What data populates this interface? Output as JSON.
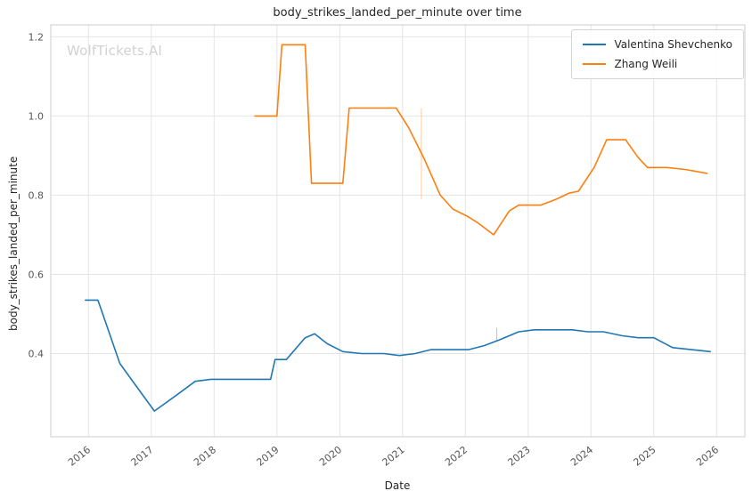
{
  "watermark": "WolfTickets.AI",
  "chart_data": {
    "type": "line",
    "title": "body_strikes_landed_per_minute over time",
    "xlabel": "Date",
    "ylabel": "body_strikes_landed_per_minute",
    "xlim": [
      2015.4,
      2026.45
    ],
    "ylim": [
      0.19,
      1.23
    ],
    "xticks": [
      2016,
      2017,
      2018,
      2019,
      2020,
      2021,
      2022,
      2023,
      2024,
      2025,
      2026
    ],
    "yticks": [
      0.4,
      0.6,
      0.8,
      1.0,
      1.2
    ],
    "grid": true,
    "legend_position": "upper right",
    "series": [
      {
        "name": "Valentina Shevchenko",
        "color": "#1f77b4",
        "x": [
          2015.95,
          2016.15,
          2016.5,
          2016.75,
          2017.05,
          2017.4,
          2017.7,
          2017.95,
          2018.3,
          2018.6,
          2018.9,
          2018.97,
          2019.15,
          2019.45,
          2019.6,
          2019.8,
          2020.05,
          2020.35,
          2020.7,
          2020.95,
          2021.2,
          2021.45,
          2021.75,
          2022.05,
          2022.3,
          2022.55,
          2022.85,
          2023.1,
          2023.4,
          2023.7,
          2023.95,
          2024.2,
          2024.5,
          2024.75,
          2025.0,
          2025.3,
          2025.6,
          2025.9
        ],
        "y": [
          0.535,
          0.535,
          0.375,
          0.32,
          0.255,
          0.295,
          0.33,
          0.335,
          0.335,
          0.335,
          0.335,
          0.385,
          0.385,
          0.44,
          0.45,
          0.425,
          0.405,
          0.4,
          0.4,
          0.395,
          0.4,
          0.41,
          0.41,
          0.41,
          0.42,
          0.435,
          0.455,
          0.46,
          0.46,
          0.46,
          0.455,
          0.455,
          0.445,
          0.44,
          0.44,
          0.415,
          0.41,
          0.405
        ]
      },
      {
        "name": "Zhang Weili",
        "color": "#ff7f0e",
        "x": [
          2018.65,
          2019.0,
          2019.08,
          2019.45,
          2019.55,
          2020.05,
          2020.15,
          2020.9,
          2021.1,
          2021.35,
          2021.6,
          2021.8,
          2022.05,
          2022.2,
          2022.45,
          2022.7,
          2022.85,
          2023.2,
          2023.45,
          2023.65,
          2023.8,
          2024.05,
          2024.25,
          2024.55,
          2024.75,
          2024.9,
          2025.2,
          2025.5,
          2025.85
        ],
        "y": [
          1.0,
          1.0,
          1.18,
          1.18,
          0.83,
          0.83,
          1.02,
          1.02,
          0.97,
          0.89,
          0.8,
          0.765,
          0.745,
          0.73,
          0.7,
          0.76,
          0.775,
          0.775,
          0.79,
          0.805,
          0.81,
          0.87,
          0.94,
          0.94,
          0.895,
          0.87,
          0.87,
          0.865,
          0.855
        ]
      }
    ],
    "event_marks": [
      {
        "series_index": 1,
        "x": 2021.3,
        "y0": 0.79,
        "y1": 1.02
      },
      {
        "series_index": 0,
        "x": 2022.5,
        "y0": 0.43,
        "y1": 0.465
      }
    ]
  }
}
